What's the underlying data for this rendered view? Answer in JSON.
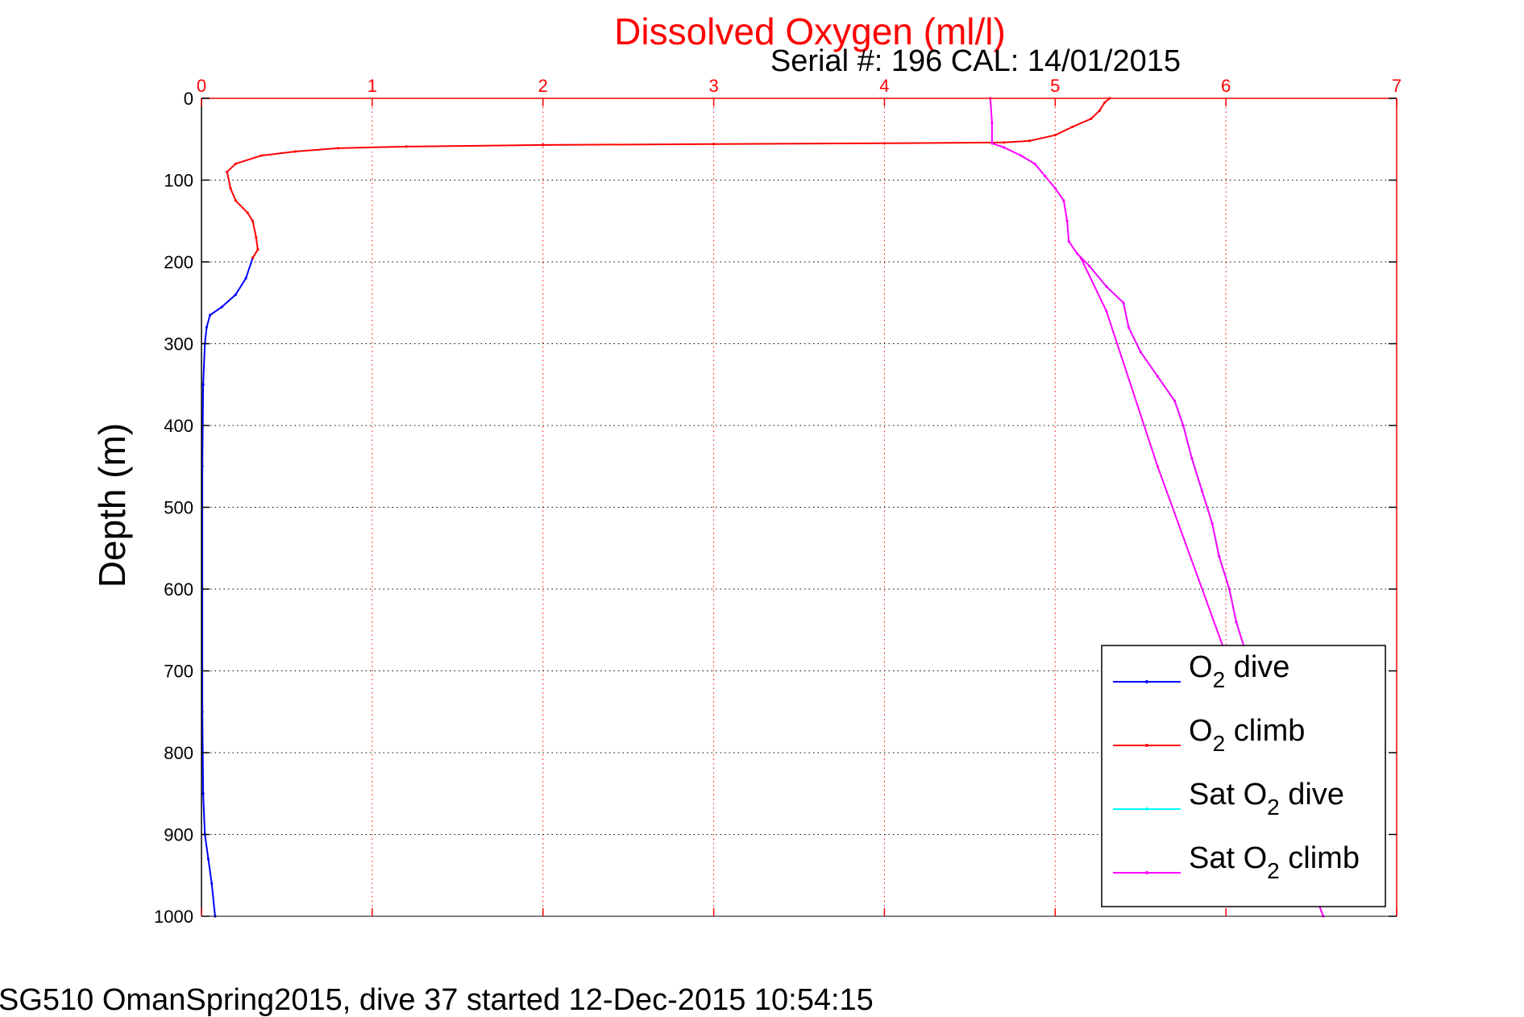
{
  "chart_data": {
    "type": "line",
    "title": "Dissolved Oxygen (ml/l)",
    "subtitle": "Serial #: 196  CAL: 14/01/2015",
    "caption": "SG510 OmanSpring2015, dive 37 started 12-Dec-2015 10:54:15",
    "ylabel": "Depth (m)",
    "xlabel": "",
    "xlim": [
      0,
      7
    ],
    "ylim": [
      0,
      1000
    ],
    "y_reversed": true,
    "x_axis_position": "top",
    "x_ticks": [
      0,
      1,
      2,
      3,
      4,
      5,
      6,
      7
    ],
    "y_ticks": [
      0,
      100,
      200,
      300,
      400,
      500,
      600,
      700,
      800,
      900,
      1000
    ],
    "grid": true,
    "legend_position": "bottom-right",
    "colors": {
      "title": "#ff0000",
      "x_axis": "#ff0000",
      "grid_x": "#ff0000",
      "grid_y": "#000000"
    },
    "series": [
      {
        "name": "O2 dive",
        "color": "#0000ff",
        "points": [
          [
            0.3,
            195
          ],
          [
            0.26,
            220
          ],
          [
            0.2,
            240
          ],
          [
            0.12,
            255
          ],
          [
            0.05,
            265
          ],
          [
            0.03,
            280
          ],
          [
            0.02,
            300
          ],
          [
            0.01,
            350
          ],
          [
            0.005,
            450
          ],
          [
            0.005,
            600
          ],
          [
            0.005,
            750
          ],
          [
            0.01,
            850
          ],
          [
            0.02,
            900
          ],
          [
            0.04,
            930
          ],
          [
            0.06,
            960
          ],
          [
            0.08,
            1000
          ]
        ]
      },
      {
        "name": "O2 climb",
        "color": "#ff0000",
        "points": [
          [
            5.32,
            0
          ],
          [
            5.29,
            5
          ],
          [
            5.26,
            15
          ],
          [
            5.21,
            25
          ],
          [
            5.1,
            35
          ],
          [
            5.0,
            45
          ],
          [
            4.85,
            52
          ],
          [
            4.7,
            54
          ],
          [
            4.0,
            55
          ],
          [
            3.0,
            56
          ],
          [
            2.0,
            57
          ],
          [
            1.2,
            59
          ],
          [
            0.8,
            61
          ],
          [
            0.55,
            65
          ],
          [
            0.35,
            70
          ],
          [
            0.2,
            80
          ],
          [
            0.15,
            90
          ],
          [
            0.17,
            110
          ],
          [
            0.2,
            125
          ],
          [
            0.27,
            140
          ],
          [
            0.3,
            150
          ],
          [
            0.32,
            170
          ],
          [
            0.33,
            185
          ],
          [
            0.3,
            195
          ]
        ]
      },
      {
        "name": "Sat O2 dive",
        "color": "#00ffff",
        "points": [
          [
            5.2,
            205
          ],
          [
            5.3,
            230
          ],
          [
            5.4,
            250
          ],
          [
            5.43,
            280
          ],
          [
            5.5,
            310
          ],
          [
            5.6,
            340
          ],
          [
            5.7,
            370
          ],
          [
            5.75,
            400
          ],
          [
            5.8,
            440
          ],
          [
            5.86,
            480
          ],
          [
            5.92,
            520
          ],
          [
            5.96,
            560
          ],
          [
            6.02,
            600
          ],
          [
            6.06,
            640
          ],
          [
            6.12,
            680
          ]
        ]
      },
      {
        "name": "Sat O2 climb",
        "color": "#ff00ff",
        "points": [
          [
            4.62,
            0
          ],
          [
            4.63,
            30
          ],
          [
            4.63,
            55
          ],
          [
            4.7,
            60
          ],
          [
            4.8,
            70
          ],
          [
            4.88,
            80
          ],
          [
            4.94,
            95
          ],
          [
            5.0,
            110
          ],
          [
            5.05,
            125
          ],
          [
            5.07,
            150
          ],
          [
            5.08,
            175
          ],
          [
            5.13,
            190
          ],
          [
            5.2,
            205
          ],
          [
            5.3,
            230
          ],
          [
            5.4,
            250
          ],
          [
            5.43,
            280
          ],
          [
            5.5,
            310
          ],
          [
            5.6,
            340
          ],
          [
            5.7,
            370
          ],
          [
            5.75,
            400
          ],
          [
            5.8,
            440
          ],
          [
            5.86,
            480
          ],
          [
            5.92,
            520
          ],
          [
            5.96,
            560
          ],
          [
            6.02,
            600
          ],
          [
            6.06,
            640
          ],
          [
            6.12,
            680
          ],
          [
            6.2,
            740
          ],
          [
            6.3,
            820
          ],
          [
            6.4,
            900
          ],
          [
            6.5,
            960
          ],
          [
            6.57,
            1000
          ],
          [
            6.0,
            680
          ],
          [
            5.6,
            450
          ],
          [
            5.3,
            260
          ],
          [
            5.15,
            195
          ]
        ]
      }
    ],
    "legend_entries": [
      {
        "prefix": "O",
        "sub": "2",
        "suffix": " dive",
        "color": "#0000ff"
      },
      {
        "prefix": "O",
        "sub": "2",
        "suffix": " climb",
        "color": "#ff0000"
      },
      {
        "prefix": "Sat O",
        "sub": "2",
        "suffix": " dive",
        "color": "#00ffff"
      },
      {
        "prefix": "Sat O",
        "sub": "2",
        "suffix": " climb",
        "color": "#ff00ff"
      }
    ]
  }
}
